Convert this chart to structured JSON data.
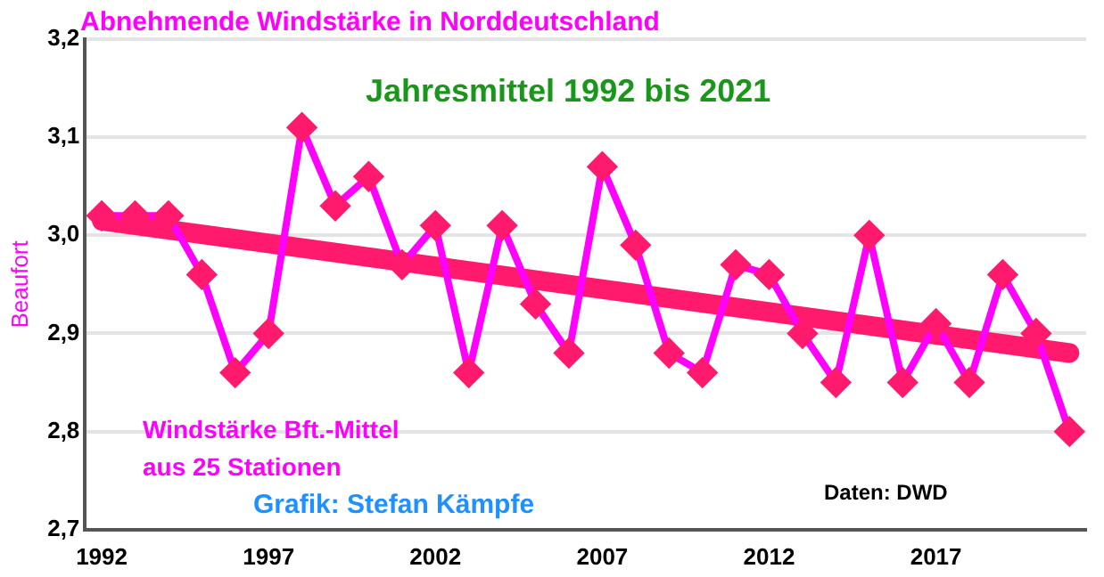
{
  "chart_data": {
    "type": "line",
    "title": "Abnehmende Windstärke in Norddeutschland",
    "subtitle": "Jahresmittel 1992 bis 2021",
    "ylabel": "Beaufort",
    "annotations": [
      "Windstärke Bft.-Mittel",
      "aus 25 Stationen",
      "Grafik: Stefan Kämpfe",
      "Daten: DWD"
    ],
    "x": [
      1992,
      1993,
      1994,
      1995,
      1996,
      1997,
      1998,
      1999,
      2000,
      2001,
      2002,
      2003,
      2004,
      2005,
      2006,
      2007,
      2008,
      2009,
      2010,
      2011,
      2012,
      2013,
      2014,
      2015,
      2016,
      2017,
      2018,
      2019,
      2020,
      2021
    ],
    "series": [
      {
        "color": "#ff00ff",
        "marker": "diamond",
        "values": [
          3.02,
          3.02,
          3.02,
          2.96,
          2.86,
          2.9,
          3.11,
          3.03,
          3.06,
          2.97,
          3.01,
          2.86,
          3.01,
          2.93,
          2.88,
          3.07,
          2.99,
          2.88,
          2.86,
          2.97,
          2.96,
          2.9,
          2.85,
          3.0,
          2.85,
          2.91,
          2.85,
          2.96,
          2.9,
          2.8
        ]
      },
      {
        "color": "#ff1a6e",
        "marker": "none",
        "x": [
          1992,
          2021
        ],
        "values": [
          3.015,
          2.88
        ]
      }
    ],
    "xlim": [
      1991.5,
      2021.5
    ],
    "xticks": [
      1992,
      1997,
      2002,
      2007,
      2012,
      2017
    ],
    "ylim": [
      2.7,
      3.2
    ],
    "yticks": [
      {
        "value": 2.7,
        "label": "2,7"
      },
      {
        "value": 2.8,
        "label": "2,8"
      },
      {
        "value": 2.9,
        "label": "2,9"
      },
      {
        "value": 3.0,
        "label": "3,0"
      },
      {
        "value": 3.1,
        "label": "3,1"
      },
      {
        "value": 3.2,
        "label": "3,2"
      }
    ],
    "grid": "y",
    "legend": false
  }
}
